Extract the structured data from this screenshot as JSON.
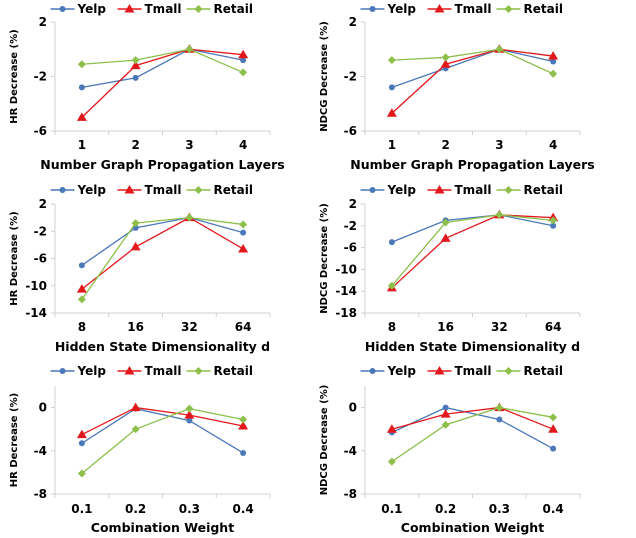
{
  "colors": {
    "Yelp": "#4a78b8",
    "Tmall": "#e3181c",
    "Retail": "#8dbf4a",
    "axis": "#d0d0d0"
  },
  "legend_position": "top-center",
  "chart_data": [
    {
      "type": "line",
      "xlabel": "Number Graph Propagation Layers",
      "ylabel": "HR Decrease (%)",
      "categories": [
        "1",
        "2",
        "3",
        "4"
      ],
      "yticks": [
        2,
        -2,
        -6
      ],
      "ylim": [
        -6,
        2
      ],
      "grid": false,
      "series": [
        {
          "name": "Yelp",
          "marker": "circle",
          "values": [
            -2.8,
            -2.1,
            0.0,
            -0.8
          ]
        },
        {
          "name": "Tmall",
          "marker": "triangle",
          "values": [
            -5.0,
            -1.2,
            0.0,
            -0.4
          ]
        },
        {
          "name": "Retail",
          "marker": "diamond",
          "values": [
            -1.1,
            -0.8,
            0.0,
            -1.7
          ]
        }
      ]
    },
    {
      "type": "line",
      "xlabel": "Number Graph Propagation Layers",
      "ylabel": "NDCG Decrease (%)",
      "categories": [
        "1",
        "2",
        "3",
        "4"
      ],
      "yticks": [
        2,
        -2,
        -6
      ],
      "ylim": [
        -6,
        2
      ],
      "grid": false,
      "series": [
        {
          "name": "Yelp",
          "marker": "circle",
          "values": [
            -2.8,
            -1.4,
            0.0,
            -0.9
          ]
        },
        {
          "name": "Tmall",
          "marker": "triangle",
          "values": [
            -4.7,
            -1.1,
            0.0,
            -0.5
          ]
        },
        {
          "name": "Retail",
          "marker": "diamond",
          "values": [
            -0.8,
            -0.6,
            0.0,
            -1.8
          ]
        }
      ]
    },
    {
      "type": "line",
      "xlabel": "Hidden State Dimensionality d",
      "ylabel": "HR Decrease (%)",
      "categories": [
        "8",
        "16",
        "32",
        "64"
      ],
      "yticks": [
        2,
        -2,
        -6,
        -10,
        -14
      ],
      "ylim": [
        -14,
        2
      ],
      "grid": false,
      "series": [
        {
          "name": "Yelp",
          "marker": "circle",
          "values": [
            -7.0,
            -1.5,
            0.0,
            -2.2
          ]
        },
        {
          "name": "Tmall",
          "marker": "triangle",
          "values": [
            -10.5,
            -4.3,
            0.0,
            -4.6
          ]
        },
        {
          "name": "Retail",
          "marker": "diamond",
          "values": [
            -12.0,
            -0.8,
            0.0,
            -1.0
          ]
        }
      ]
    },
    {
      "type": "line",
      "xlabel": "Hidden State Dimensionality d",
      "ylabel": "NDCG Decrease (%)",
      "categories": [
        "8",
        "16",
        "32",
        "64"
      ],
      "yticks": [
        2,
        -2,
        -6,
        -10,
        -14,
        -18
      ],
      "ylim": [
        -18,
        2
      ],
      "grid": false,
      "series": [
        {
          "name": "Yelp",
          "marker": "circle",
          "values": [
            -5.0,
            -1.0,
            0.0,
            -2.0
          ]
        },
        {
          "name": "Tmall",
          "marker": "triangle",
          "values": [
            -13.4,
            -4.3,
            0.0,
            -0.5
          ]
        },
        {
          "name": "Retail",
          "marker": "diamond",
          "values": [
            -13.0,
            -1.4,
            0.0,
            -1.0
          ]
        }
      ]
    },
    {
      "type": "line",
      "xlabel": "Combination Weight",
      "ylabel": "HR Decrease (%)",
      "categories": [
        "0.1",
        "0.2",
        "0.3",
        "0.4"
      ],
      "yticks": [
        0,
        -4,
        -8
      ],
      "ylim": [
        -8,
        2
      ],
      "grid": false,
      "series": [
        {
          "name": "Yelp",
          "marker": "circle",
          "values": [
            -3.3,
            -0.1,
            -1.2,
            -4.2
          ]
        },
        {
          "name": "Tmall",
          "marker": "triangle",
          "values": [
            -2.5,
            0.0,
            -0.7,
            -1.7
          ]
        },
        {
          "name": "Retail",
          "marker": "diamond",
          "values": [
            -6.1,
            -2.0,
            -0.1,
            -1.1
          ]
        }
      ]
    },
    {
      "type": "line",
      "xlabel": "Combination Weight",
      "ylabel": "NDCG Decrease (%)",
      "categories": [
        "0.1",
        "0.2",
        "0.3",
        "0.4"
      ],
      "yticks": [
        0,
        -4,
        -8
      ],
      "ylim": [
        -8,
        2
      ],
      "grid": false,
      "series": [
        {
          "name": "Yelp",
          "marker": "circle",
          "values": [
            -2.3,
            0.0,
            -1.1,
            -3.8
          ]
        },
        {
          "name": "Tmall",
          "marker": "triangle",
          "values": [
            -2.0,
            -0.6,
            0.0,
            -2.0
          ]
        },
        {
          "name": "Retail",
          "marker": "diamond",
          "values": [
            -5.0,
            -1.6,
            0.0,
            -0.9
          ]
        }
      ]
    }
  ]
}
